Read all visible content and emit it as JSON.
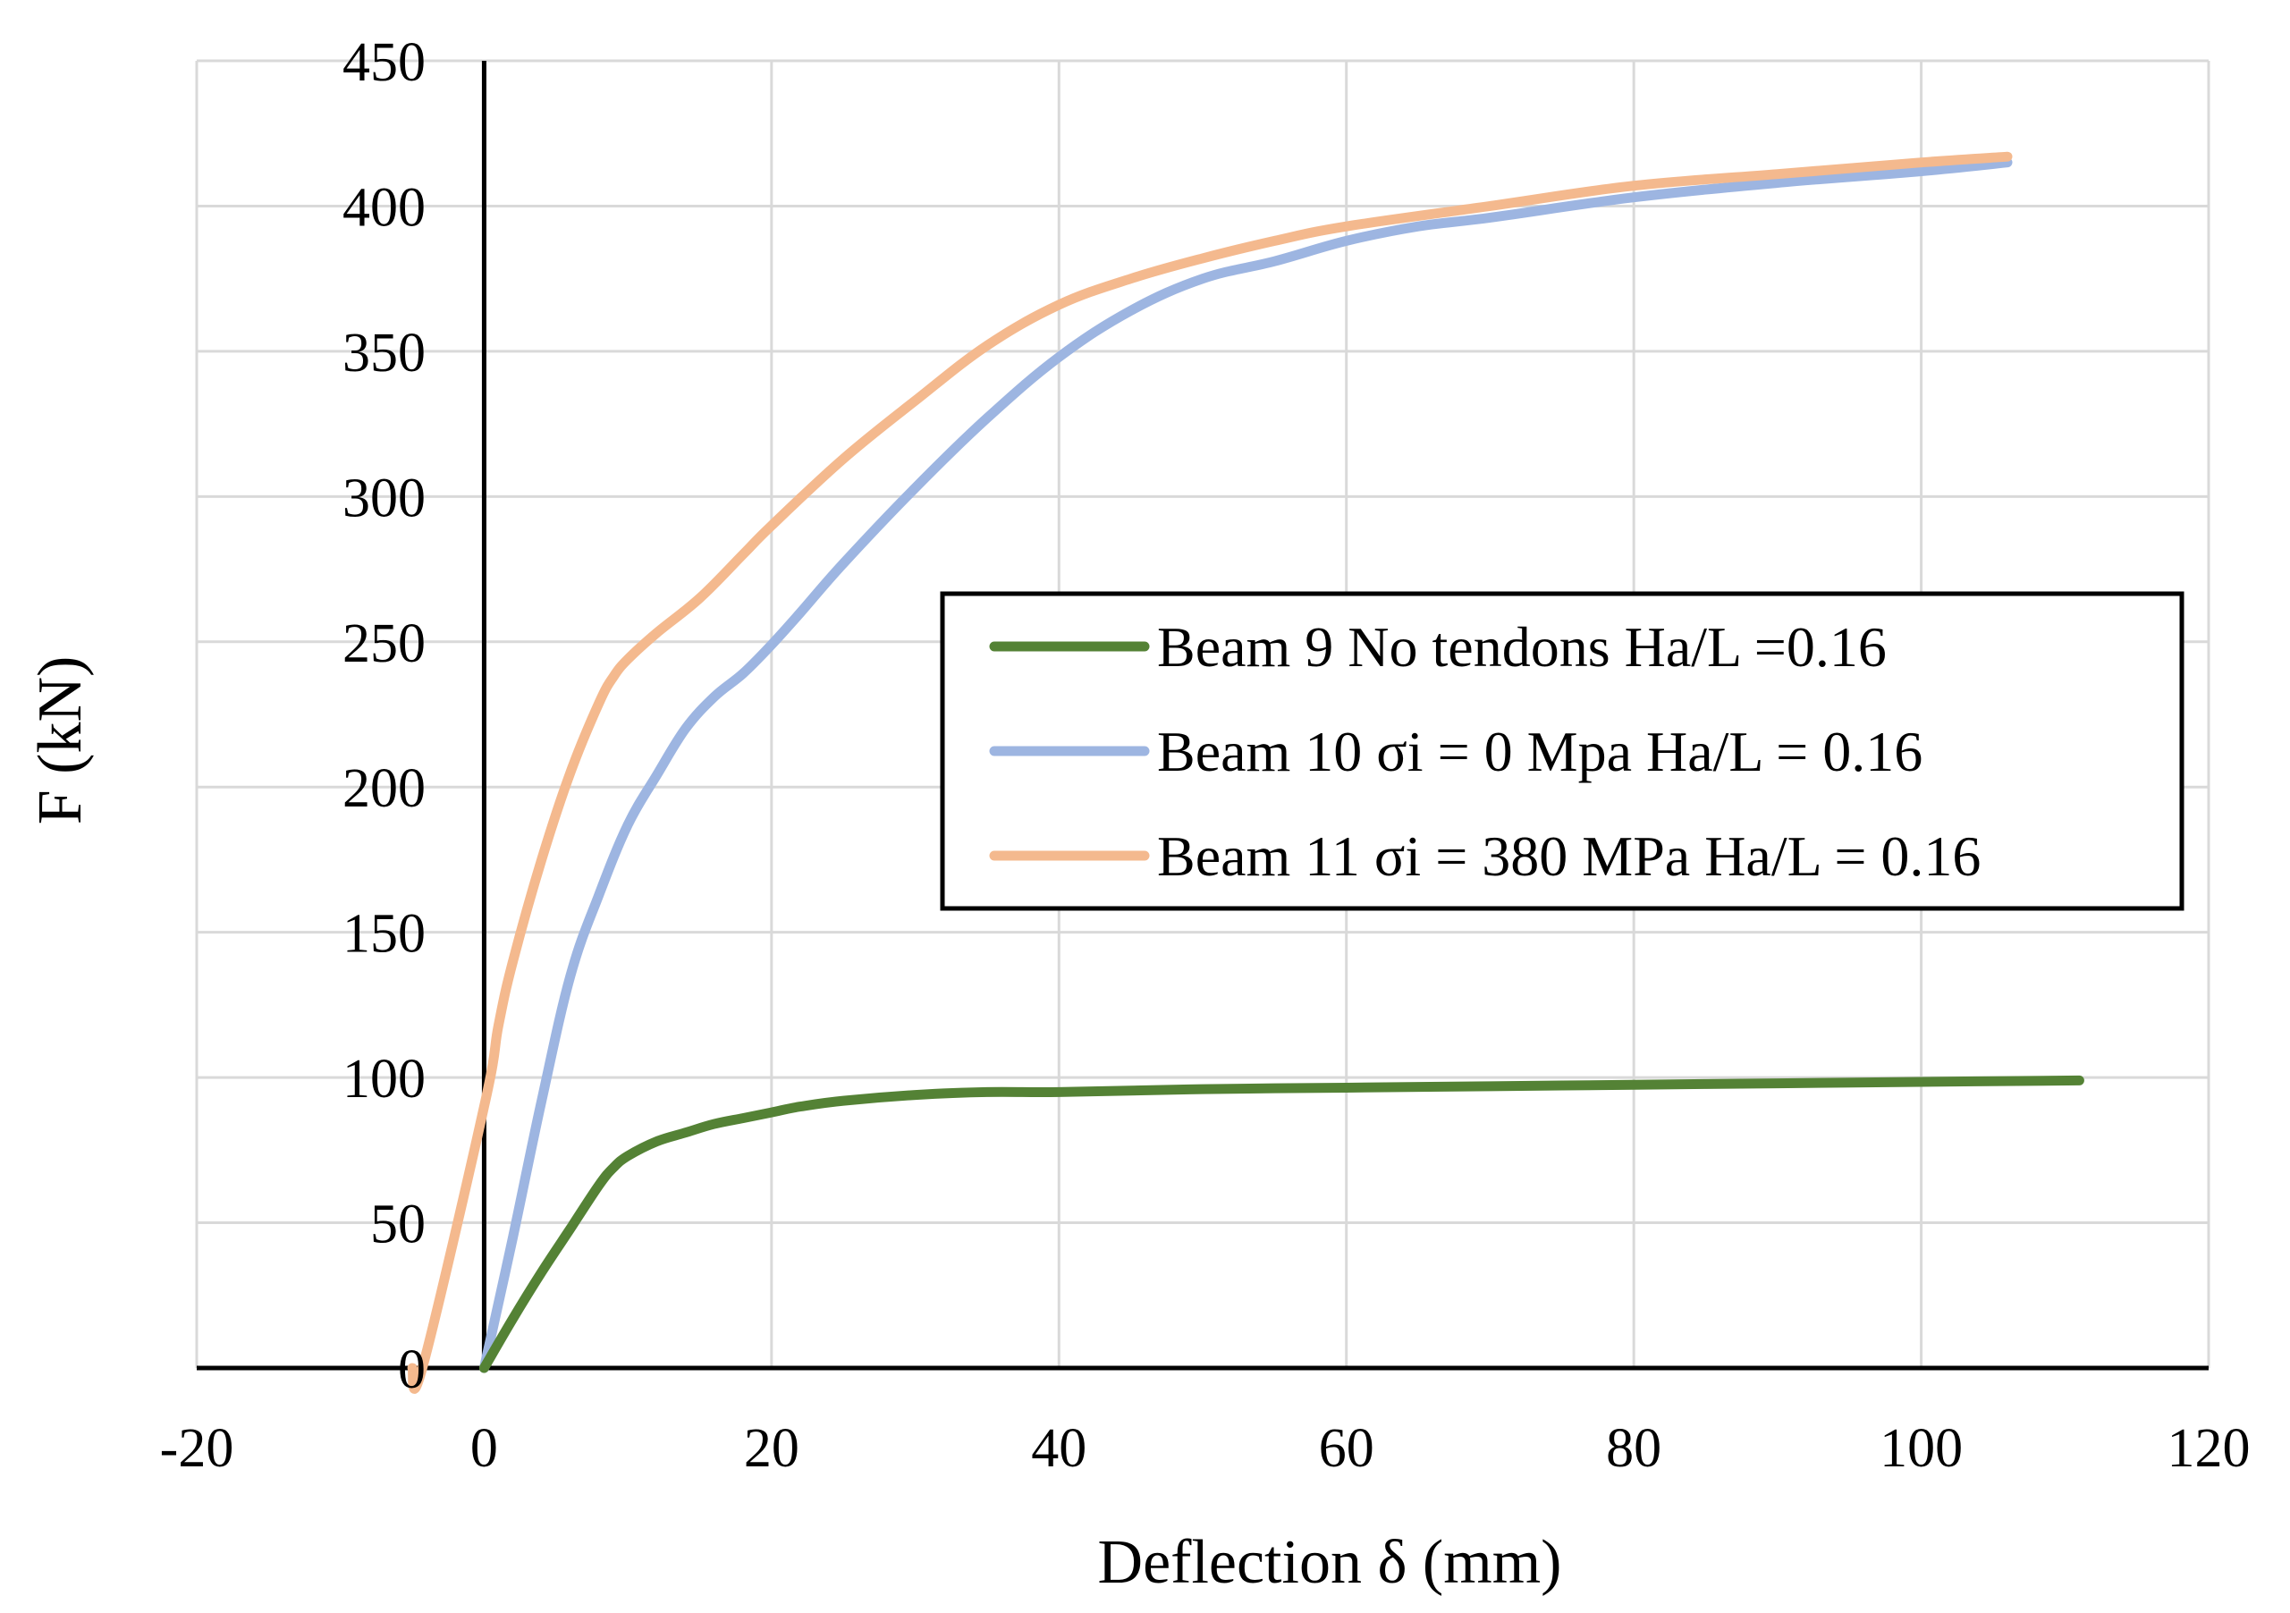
{
  "chart_data": {
    "type": "line",
    "title": "",
    "xlabel": "Deflection  δ   (mm)",
    "ylabel": "F (kN)",
    "xlim": [
      -20,
      120
    ],
    "ylim": [
      0,
      450
    ],
    "x_ticks": [
      -20,
      0,
      20,
      40,
      60,
      80,
      100,
      120
    ],
    "y_ticks": [
      0,
      50,
      100,
      150,
      200,
      250,
      300,
      350,
      400,
      450
    ],
    "x_tick_labels": [
      "-20",
      "0",
      "20",
      "40",
      "60",
      "80",
      "100",
      "120"
    ],
    "y_tick_labels": [
      "0",
      "50",
      "100",
      "150",
      "200",
      "250",
      "300",
      "350",
      "400",
      "450"
    ],
    "grid": true,
    "legend_position": "right",
    "series": [
      {
        "name": "Beam 9 No tendons Ha/L =0.16",
        "color": "#548235",
        "x": [
          0,
          2,
          4,
          6,
          8,
          9,
          10,
          12,
          14,
          16,
          18,
          20,
          22,
          25,
          30,
          35,
          40,
          50,
          60,
          70,
          80,
          90,
          100,
          111
        ],
        "y": [
          0,
          17,
          33,
          48,
          63,
          69,
          73,
          78,
          81,
          84,
          86,
          88,
          90,
          92,
          94,
          95,
          95,
          96,
          96.5,
          97,
          97.5,
          98,
          98.5,
          99
        ]
      },
      {
        "name": "Beam 10 σi = 0 Mpa Ha/L = 0.16",
        "color": "#9DB5E1",
        "x": [
          0,
          2,
          4,
          6,
          8,
          10,
          12,
          14,
          16,
          18,
          20,
          22,
          25,
          30,
          35,
          40,
          45,
          50,
          55,
          60,
          65,
          70,
          80,
          90,
          100,
          106
        ],
        "y": [
          0,
          45,
          92,
          135,
          163,
          187,
          204,
          220,
          231,
          239,
          249,
          260,
          277,
          303,
          327,
          348,
          364,
          375,
          381,
          388,
          393,
          396,
          403,
          408,
          412,
          415
        ]
      },
      {
        "name": "Beam 11 σi = 380 MPa Ha/L = 0.16",
        "color": "#F4B98E",
        "x": [
          -5,
          -4.3,
          0,
          1,
          2,
          4,
          6,
          8,
          9,
          10,
          12,
          15,
          18,
          20,
          25,
          30,
          35,
          40,
          45,
          50,
          55,
          60,
          70,
          80,
          90,
          100,
          106
        ],
        "y": [
          0,
          0,
          90,
          118,
          140,
          175,
          205,
          229,
          238,
          244,
          253,
          265,
          280,
          290,
          313,
          333,
          352,
          366,
          375,
          382,
          388,
          393,
          400,
          407,
          411,
          415,
          417
        ]
      }
    ]
  }
}
